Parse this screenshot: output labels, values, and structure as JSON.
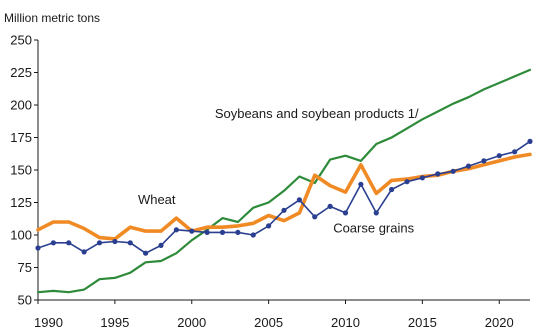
{
  "chart_data": {
    "type": "line",
    "title": "",
    "ylabel": "Million metric tons",
    "xlabel": "",
    "xlim": [
      1990,
      2022
    ],
    "ylim": [
      50,
      250
    ],
    "x_ticks": [
      1990,
      1995,
      2000,
      2005,
      2010,
      2015,
      2020
    ],
    "y_ticks": [
      50,
      75,
      100,
      125,
      150,
      175,
      200,
      225,
      250
    ],
    "grid": false,
    "legend": "none",
    "x": [
      1990,
      1991,
      1992,
      1993,
      1994,
      1995,
      1996,
      1997,
      1998,
      1999,
      2000,
      2001,
      2002,
      2003,
      2004,
      2005,
      2006,
      2007,
      2008,
      2009,
      2010,
      2011,
      2012,
      2013,
      2014,
      2015,
      2016,
      2017,
      2018,
      2019,
      2020,
      2021,
      2022
    ],
    "series": [
      {
        "name": "Soybeans and soybean products 1/",
        "color": "#2e8b3a",
        "values": [
          56,
          57,
          56,
          58,
          66,
          67,
          71,
          79,
          80,
          86,
          96,
          104,
          113,
          110,
          121,
          125,
          134,
          145,
          140,
          158,
          161,
          157,
          170,
          175,
          182,
          189,
          195,
          201,
          206,
          212,
          217,
          222,
          227
        ]
      },
      {
        "name": "Wheat",
        "color": "#f08a24",
        "values": [
          104,
          110,
          110,
          105,
          98,
          97,
          106,
          103,
          103,
          113,
          103,
          106,
          106,
          107,
          109,
          115,
          111,
          117,
          146,
          138,
          133,
          154,
          132,
          142,
          143,
          145,
          146,
          149,
          151,
          154,
          157,
          160,
          162
        ]
      },
      {
        "name": "Coarse grains",
        "color": "#2a3f8f",
        "values": [
          90,
          94,
          94,
          87,
          94,
          95,
          94,
          86,
          92,
          104,
          103,
          102,
          102,
          102,
          100,
          107,
          119,
          127,
          114,
          122,
          117,
          139,
          117,
          135,
          141,
          144,
          147,
          149,
          153,
          157,
          161,
          164,
          172
        ]
      }
    ],
    "annotations": [
      {
        "text": "Soybeans and soybean products 1/",
        "x": 2001.5,
        "y": 190
      },
      {
        "text": "Wheat",
        "x": 1996.5,
        "y": 124
      },
      {
        "text": "Coarse grains",
        "x": 2009.2,
        "y": 102
      }
    ]
  }
}
